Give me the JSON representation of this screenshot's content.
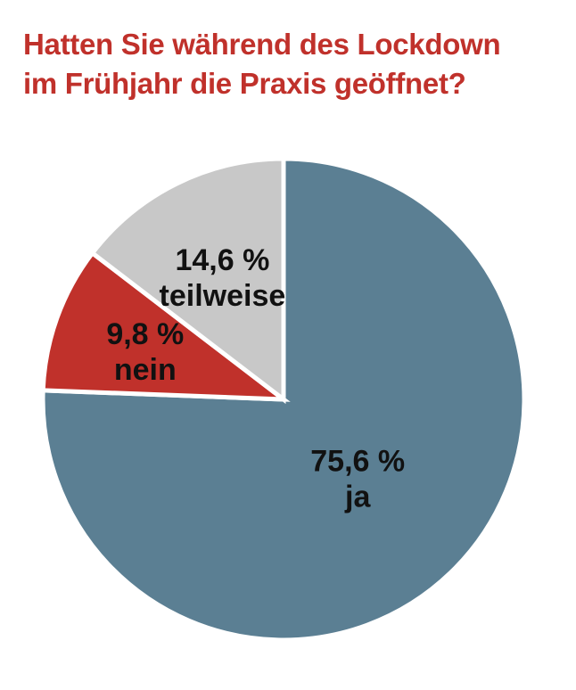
{
  "title": {
    "line1": "Hatten Sie während des Lockdown",
    "line2": "im Frühjahr die Praxis geöffnet?"
  },
  "chart_data": {
    "type": "pie",
    "title": "Hatten Sie während des Lockdown im Frühjahr die Praxis geöffnet?",
    "start": "12 o'clock, clockwise",
    "slices": [
      {
        "label": "ja",
        "value": 75.6,
        "value_label": "75,6 %",
        "color": "#5b7f93"
      },
      {
        "label": "nein",
        "value": 9.8,
        "value_label": "9,8 %",
        "color": "#c0312b"
      },
      {
        "label": "teilweise",
        "value": 14.6,
        "value_label": "14,6 %",
        "color": "#c8c8c8"
      }
    ],
    "legend": "none"
  }
}
